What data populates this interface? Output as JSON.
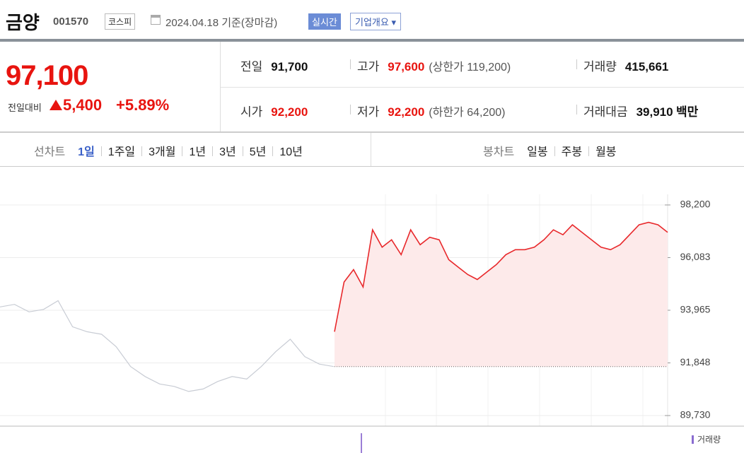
{
  "header": {
    "name": "금양",
    "code": "001570",
    "market": "코스피",
    "date": "2024.04.18",
    "date_note": "기준(장마감)",
    "realtime": "실시간",
    "company_info": "기업개요"
  },
  "price": {
    "current": "97,100",
    "change_label": "전일대비",
    "change": "5,400",
    "change_rate": "+5.89%"
  },
  "summary": {
    "rows": [
      [
        {
          "label": "전일",
          "value": "91,700"
        },
        {
          "label": "고가",
          "value": "97,600",
          "extra_label": "상한가",
          "extra_value": "119,200"
        },
        {
          "label": "거래량",
          "value": "415,661"
        }
      ],
      [
        {
          "label": "시가",
          "value": "92,200"
        },
        {
          "label": "저가",
          "value": "92,200",
          "extra_label": "하한가",
          "extra_value": "64,200"
        },
        {
          "label": "거래대금",
          "value": "39,910",
          "unit": "백만"
        }
      ]
    ]
  },
  "tabs": {
    "line_label": "선차트",
    "line": [
      "1일",
      "1주일",
      "3개월",
      "1년",
      "3년",
      "5년",
      "10년"
    ],
    "candle_label": "봉차트",
    "candle": [
      "일봉",
      "주봉",
      "월봉"
    ]
  },
  "chart_data": {
    "type": "line",
    "grid": true,
    "ylim": [
      89730,
      98200
    ],
    "yticks": [
      {
        "value": 89730,
        "label": "89,730"
      },
      {
        "value": 91848,
        "label": "91,848"
      },
      {
        "value": 93965,
        "label": "93,965"
      },
      {
        "value": 96083,
        "label": "96,083"
      },
      {
        "value": 98200,
        "label": "98,200"
      }
    ],
    "reference_line": 91700,
    "volume_label": "거래량",
    "series": [
      {
        "color": "#c8ccd4",
        "values": [
          94100,
          94200,
          93900,
          94000,
          94350,
          93300,
          93100,
          93000,
          92500,
          91700,
          91300,
          91000,
          90900,
          90700,
          90800,
          91100,
          91300,
          91200,
          91700,
          92300,
          92800,
          92100,
          91800,
          91700
        ]
      },
      {
        "color": "#e8282b",
        "fill": "#fdeaea",
        "values": [
          93100,
          95100,
          95600,
          94900,
          97200,
          96500,
          96800,
          96200,
          97200,
          96600,
          96900,
          96800,
          96000,
          95700,
          95400,
          95200,
          95500,
          95800,
          96200,
          96400,
          96400,
          96500,
          96800,
          97200,
          97000,
          97400,
          97100,
          96800,
          96500,
          96400,
          96600,
          97000,
          97400,
          97500,
          97400,
          97100
        ]
      }
    ]
  }
}
